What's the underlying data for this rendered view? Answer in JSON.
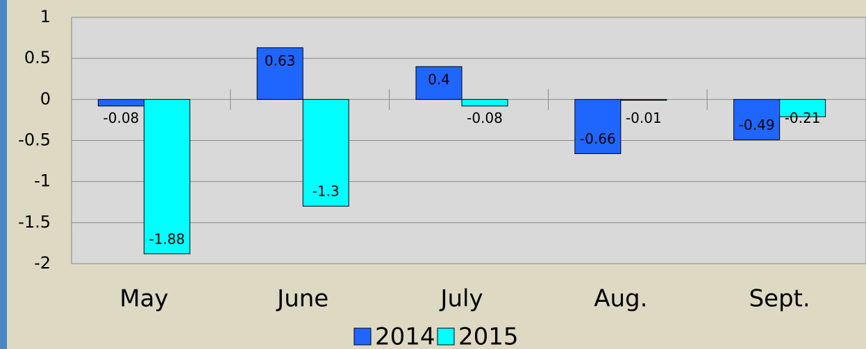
{
  "chart_data": {
    "type": "bar",
    "categories": [
      "May",
      "June",
      "July",
      "Aug.",
      "Sept."
    ],
    "series": [
      {
        "name": "2014",
        "color": "#1f66ff",
        "values": [
          -0.08,
          0.63,
          0.4,
          -0.66,
          -0.49
        ]
      },
      {
        "name": "2015",
        "color": "#00ffff",
        "values": [
          -1.88,
          -1.3,
          -0.08,
          -0.01,
          -0.21
        ]
      }
    ],
    "ylim": [
      -2,
      1
    ],
    "yticks": [
      -2,
      -1.5,
      -1,
      -0.5,
      0,
      0.5,
      1
    ],
    "grid": true,
    "legend": "bottom"
  }
}
